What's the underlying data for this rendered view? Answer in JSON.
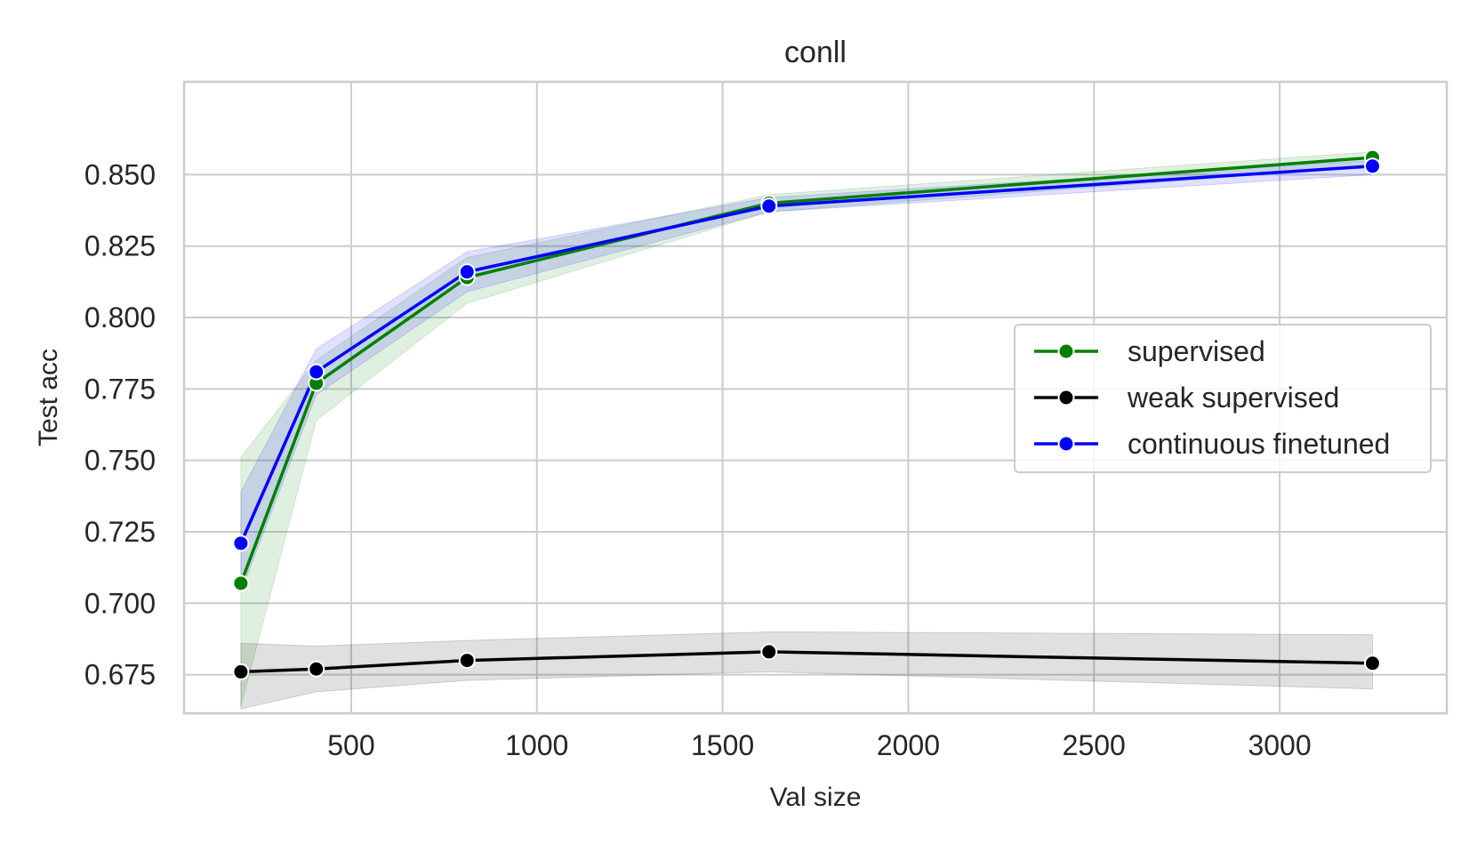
{
  "chart_data": {
    "type": "line",
    "title": "conll",
    "xlabel": "Val size",
    "ylabel": "Test acc",
    "xlim": [
      50,
      3450
    ],
    "ylim": [
      0.6615,
      0.8825
    ],
    "xticks": [
      500,
      1000,
      1500,
      2000,
      2500,
      3000
    ],
    "yticks": [
      0.675,
      0.7,
      0.725,
      0.75,
      0.775,
      0.8,
      0.825,
      0.85
    ],
    "xtick_labels": [
      "500",
      "1000",
      "1500",
      "2000",
      "2500",
      "3000"
    ],
    "ytick_labels": [
      "0.675",
      "0.700",
      "0.725",
      "0.750",
      "0.775",
      "0.800",
      "0.825",
      "0.850"
    ],
    "grid": true,
    "legend_position": "center-right",
    "x": [
      203,
      406,
      812,
      1625,
      3250
    ],
    "series": [
      {
        "name": "supervised",
        "color": "#008000",
        "values": [
          0.707,
          0.777,
          0.814,
          0.84,
          0.856
        ],
        "ci_low": [
          0.664,
          0.764,
          0.805,
          0.837,
          0.853
        ],
        "ci_high": [
          0.751,
          0.785,
          0.821,
          0.843,
          0.858
        ]
      },
      {
        "name": "weak supervised",
        "color": "#000000",
        "values": [
          0.676,
          0.677,
          0.68,
          0.683,
          0.679
        ],
        "ci_low": [
          0.663,
          0.669,
          0.673,
          0.676,
          0.67
        ],
        "ci_high": [
          0.686,
          0.685,
          0.687,
          0.69,
          0.689
        ]
      },
      {
        "name": "continuous finetuned",
        "color": "#0000ff",
        "values": [
          0.721,
          0.781,
          0.816,
          0.839,
          0.853
        ],
        "ci_low": [
          0.704,
          0.773,
          0.809,
          0.837,
          0.85
        ],
        "ci_high": [
          0.739,
          0.789,
          0.823,
          0.842,
          0.855
        ]
      }
    ]
  }
}
